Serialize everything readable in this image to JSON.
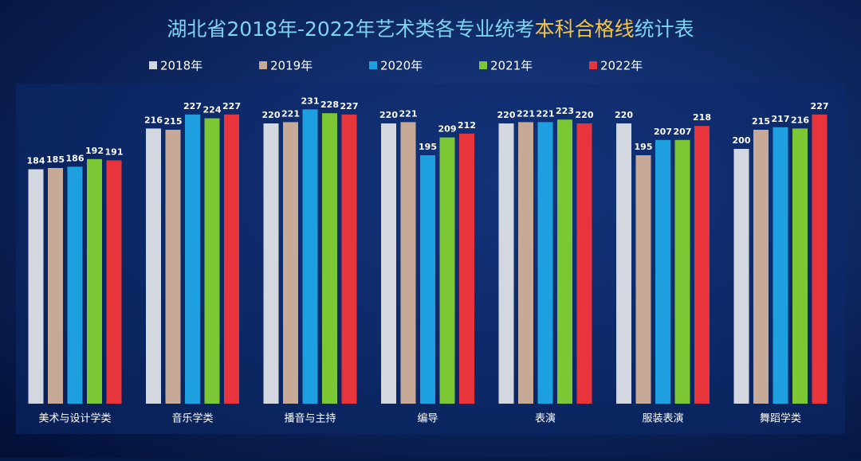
{
  "chart_data": {
    "type": "bar",
    "title": [
      "湖北省2018年-2022年艺术类各专业统考",
      "本科合格线",
      "统计表"
    ],
    "title_colors": [
      "#7fd3f0",
      "#f4c542",
      "#7fd3f0"
    ],
    "categories": [
      "美术与设计学类",
      "音乐学类",
      "播音与主持",
      "编导",
      "表演",
      "服装表演",
      "舞蹈学类"
    ],
    "series": [
      {
        "name": "2018年",
        "color": "#d3d7df",
        "values": [
          184,
          216,
          220,
          220,
          220,
          220,
          200
        ]
      },
      {
        "name": "2019年",
        "color": "#c7a998",
        "values": [
          185,
          215,
          221,
          221,
          221,
          195,
          215
        ]
      },
      {
        "name": "2020年",
        "color": "#1e9fe0",
        "values": [
          186,
          227,
          231,
          195,
          221,
          207,
          217
        ]
      },
      {
        "name": "2021年",
        "color": "#7cc734",
        "values": [
          192,
          224,
          228,
          209,
          223,
          207,
          216
        ]
      },
      {
        "name": "2022年",
        "color": "#e8343b",
        "values": [
          191,
          227,
          227,
          212,
          220,
          218,
          227
        ]
      }
    ],
    "ylim": [
      0,
      250
    ]
  }
}
